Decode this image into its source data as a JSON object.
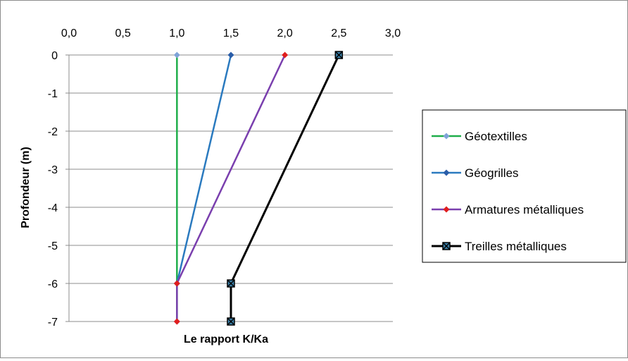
{
  "chart_data": {
    "type": "line",
    "title": "",
    "xlabel": "Le rapport  K/Ka",
    "ylabel": "Profondeur (m)",
    "xlim": [
      0,
      3
    ],
    "ylim": [
      -7,
      0
    ],
    "x_ticks": [
      "0,0",
      "0,5",
      "1,0",
      "1,5",
      "2,0",
      "2,5",
      "3,0"
    ],
    "x_tick_values": [
      0,
      0.5,
      1,
      1.5,
      2,
      2.5,
      3
    ],
    "y_ticks": [
      "0",
      "-1",
      "-2",
      "-3",
      "-4",
      "-5",
      "-6",
      "-7"
    ],
    "y_tick_values": [
      0,
      -1,
      -2,
      -3,
      -4,
      -5,
      -6,
      -7
    ],
    "x_axis_position": "top",
    "grid": "horizontal",
    "legend_position": "right",
    "series": [
      {
        "name": "Géotextilles",
        "color": "#1fae4a",
        "marker": "diamond",
        "marker_color": "#7fa3d8",
        "points": [
          {
            "x": 1.0,
            "y": 0
          },
          {
            "x": 1.0,
            "y": -6
          },
          {
            "x": 1.0,
            "y": -7
          }
        ]
      },
      {
        "name": "Géogrilles",
        "color": "#2a7abf",
        "marker": "diamond",
        "marker_color": "#2a5da8",
        "points": [
          {
            "x": 1.5,
            "y": 0
          },
          {
            "x": 1.0,
            "y": -6
          }
        ]
      },
      {
        "name": "Armatures métalliques",
        "color": "#7a3fae",
        "marker": "diamond",
        "marker_color": "#e01e1e",
        "points": [
          {
            "x": 2.0,
            "y": 0
          },
          {
            "x": 1.0,
            "y": -6
          },
          {
            "x": 1.0,
            "y": -7
          }
        ]
      },
      {
        "name": "Treilles métalliques",
        "color": "#000000",
        "marker": "x-square",
        "marker_color": "#3a7fa8",
        "points": [
          {
            "x": 2.5,
            "y": 0
          },
          {
            "x": 1.5,
            "y": -6
          },
          {
            "x": 1.5,
            "y": -7
          }
        ]
      }
    ]
  }
}
